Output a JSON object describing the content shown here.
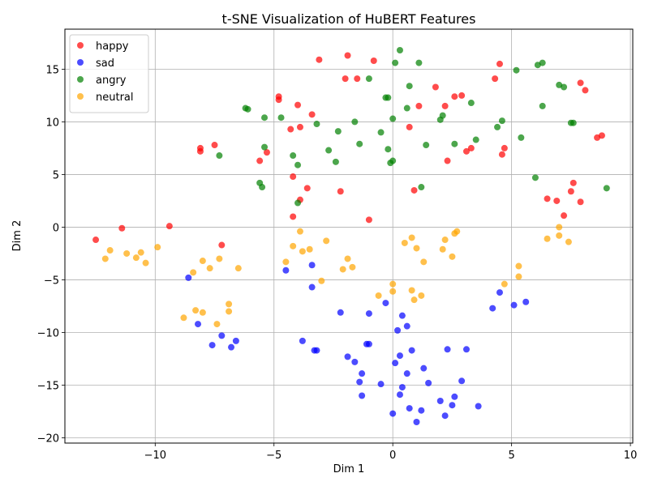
{
  "chart_data": {
    "type": "scatter",
    "title": "t-SNE Visualization of HuBERT Features",
    "xlabel": "Dim 1",
    "ylabel": "Dim 2",
    "xlim": [
      -13.8,
      10.1
    ],
    "ylim": [
      -20.5,
      18.8
    ],
    "xticks": [
      -10,
      -5,
      0,
      5,
      10
    ],
    "yticks": [
      -20,
      -15,
      -10,
      -5,
      0,
      5,
      10,
      15
    ],
    "xtick_labels": [
      "−10",
      "−5",
      "0",
      "5",
      "10"
    ],
    "ytick_labels": [
      "−20",
      "−15",
      "−10",
      "−5",
      "0",
      "5",
      "10",
      "15"
    ],
    "grid": true,
    "legend_position": "top-left",
    "series": [
      {
        "name": "happy",
        "color": "#ff0000",
        "points": [
          [
            -12.5,
            -1.2
          ],
          [
            -11.4,
            -0.1
          ],
          [
            -9.4,
            0.1
          ],
          [
            -7.2,
            -1.7
          ],
          [
            -8.1,
            7.2
          ],
          [
            -8.1,
            7.5
          ],
          [
            -7.5,
            7.8
          ],
          [
            -5.6,
            6.3
          ],
          [
            -5.3,
            7.1
          ],
          [
            -4.8,
            12.4
          ],
          [
            -4.8,
            12.1
          ],
          [
            -4.3,
            9.3
          ],
          [
            -4.2,
            4.8
          ],
          [
            -4.2,
            1.0
          ],
          [
            -4.0,
            11.6
          ],
          [
            -3.9,
            9.5
          ],
          [
            -3.9,
            2.6
          ],
          [
            -3.6,
            3.7
          ],
          [
            -3.4,
            10.7
          ],
          [
            -3.1,
            15.9
          ],
          [
            -2.2,
            3.4
          ],
          [
            -2.0,
            14.1
          ],
          [
            -1.9,
            16.3
          ],
          [
            -1.5,
            14.1
          ],
          [
            -1.0,
            0.7
          ],
          [
            -0.8,
            15.8
          ],
          [
            0.7,
            9.5
          ],
          [
            0.9,
            3.5
          ],
          [
            1.1,
            11.5
          ],
          [
            1.8,
            13.3
          ],
          [
            2.2,
            11.5
          ],
          [
            2.3,
            6.3
          ],
          [
            2.6,
            12.4
          ],
          [
            2.9,
            12.5
          ],
          [
            3.1,
            7.2
          ],
          [
            3.3,
            7.5
          ],
          [
            4.3,
            14.1
          ],
          [
            4.5,
            15.5
          ],
          [
            4.6,
            6.9
          ],
          [
            4.7,
            7.5
          ],
          [
            6.5,
            2.7
          ],
          [
            6.9,
            2.5
          ],
          [
            7.2,
            1.1
          ],
          [
            7.5,
            3.4
          ],
          [
            7.6,
            4.2
          ],
          [
            7.9,
            2.4
          ],
          [
            7.9,
            13.7
          ],
          [
            8.1,
            13.0
          ],
          [
            8.6,
            8.5
          ],
          [
            8.8,
            8.7
          ]
        ]
      },
      {
        "name": "sad",
        "color": "#0000ff",
        "points": [
          [
            -8.6,
            -4.8
          ],
          [
            -8.2,
            -9.2
          ],
          [
            -7.6,
            -11.2
          ],
          [
            -7.2,
            -10.3
          ],
          [
            -6.8,
            -11.4
          ],
          [
            -6.6,
            -10.8
          ],
          [
            -4.5,
            -4.1
          ],
          [
            -3.8,
            -10.8
          ],
          [
            -3.4,
            -3.6
          ],
          [
            -3.4,
            -5.7
          ],
          [
            -3.3,
            -11.7
          ],
          [
            -3.2,
            -11.7
          ],
          [
            -2.2,
            -8.1
          ],
          [
            -1.9,
            -12.3
          ],
          [
            -1.6,
            -12.8
          ],
          [
            -1.4,
            -14.7
          ],
          [
            -1.3,
            -16.0
          ],
          [
            -1.3,
            -13.9
          ],
          [
            -1.1,
            -11.1
          ],
          [
            -1.0,
            -11.1
          ],
          [
            -1.0,
            -8.2
          ],
          [
            -0.5,
            -14.9
          ],
          [
            -0.3,
            -7.2
          ],
          [
            0.0,
            -17.7
          ],
          [
            0.1,
            -12.9
          ],
          [
            0.2,
            -9.8
          ],
          [
            0.3,
            -12.2
          ],
          [
            0.4,
            -15.2
          ],
          [
            0.4,
            -8.4
          ],
          [
            0.6,
            -13.9
          ],
          [
            0.6,
            -9.4
          ],
          [
            0.7,
            -17.2
          ],
          [
            0.8,
            -11.7
          ],
          [
            1.0,
            -18.5
          ],
          [
            1.2,
            -17.4
          ],
          [
            1.3,
            -13.4
          ],
          [
            1.5,
            -14.8
          ],
          [
            2.0,
            -16.5
          ],
          [
            2.2,
            -17.9
          ],
          [
            2.3,
            -11.6
          ],
          [
            2.5,
            -16.9
          ],
          [
            2.6,
            -16.1
          ],
          [
            2.9,
            -14.6
          ],
          [
            3.1,
            -11.6
          ],
          [
            3.6,
            -17.0
          ],
          [
            4.2,
            -7.7
          ],
          [
            4.5,
            -6.2
          ],
          [
            5.1,
            -7.4
          ],
          [
            5.6,
            -7.1
          ],
          [
            0.3,
            -15.9
          ]
        ]
      },
      {
        "name": "angry",
        "color": "#008000",
        "points": [
          [
            -7.3,
            6.8
          ],
          [
            -6.2,
            11.3
          ],
          [
            -6.1,
            11.2
          ],
          [
            -5.6,
            4.2
          ],
          [
            -5.5,
            3.8
          ],
          [
            -5.4,
            10.4
          ],
          [
            -5.4,
            7.6
          ],
          [
            -4.7,
            10.4
          ],
          [
            -4.2,
            6.8
          ],
          [
            -4.0,
            2.3
          ],
          [
            -4.0,
            5.9
          ],
          [
            -3.2,
            9.8
          ],
          [
            -2.7,
            7.3
          ],
          [
            -2.4,
            6.2
          ],
          [
            -2.3,
            9.1
          ],
          [
            -1.6,
            10.0
          ],
          [
            -1.4,
            7.9
          ],
          [
            -1.0,
            14.1
          ],
          [
            -0.5,
            9.0
          ],
          [
            -0.3,
            12.3
          ],
          [
            -0.2,
            12.3
          ],
          [
            -0.2,
            7.4
          ],
          [
            -0.1,
            6.1
          ],
          [
            0.0,
            6.3
          ],
          [
            0.0,
            10.3
          ],
          [
            0.1,
            15.6
          ],
          [
            0.3,
            16.8
          ],
          [
            0.6,
            11.3
          ],
          [
            0.7,
            13.4
          ],
          [
            1.1,
            15.6
          ],
          [
            1.2,
            3.8
          ],
          [
            1.4,
            7.8
          ],
          [
            2.0,
            10.2
          ],
          [
            2.1,
            10.6
          ],
          [
            2.6,
            7.9
          ],
          [
            3.3,
            11.8
          ],
          [
            3.5,
            8.3
          ],
          [
            4.4,
            9.5
          ],
          [
            4.6,
            10.1
          ],
          [
            5.2,
            14.9
          ],
          [
            5.4,
            8.5
          ],
          [
            6.0,
            4.7
          ],
          [
            6.1,
            15.4
          ],
          [
            6.3,
            15.6
          ],
          [
            6.3,
            11.5
          ],
          [
            7.0,
            13.5
          ],
          [
            7.2,
            13.3
          ],
          [
            7.5,
            9.9
          ],
          [
            7.6,
            9.9
          ],
          [
            9.0,
            3.7
          ]
        ]
      },
      {
        "name": "neutral",
        "color": "#ffa500",
        "points": [
          [
            -12.1,
            -3.0
          ],
          [
            -11.9,
            -2.2
          ],
          [
            -11.2,
            -2.5
          ],
          [
            -10.8,
            -2.9
          ],
          [
            -10.6,
            -2.4
          ],
          [
            -10.4,
            -3.4
          ],
          [
            -9.9,
            -1.9
          ],
          [
            -8.8,
            -8.6
          ],
          [
            -8.4,
            -4.3
          ],
          [
            -8.3,
            -7.9
          ],
          [
            -8.0,
            -3.2
          ],
          [
            -8.0,
            -8.1
          ],
          [
            -7.7,
            -3.9
          ],
          [
            -7.4,
            -9.2
          ],
          [
            -7.3,
            -3.0
          ],
          [
            -6.9,
            -7.3
          ],
          [
            -6.9,
            -8.0
          ],
          [
            -6.5,
            -3.9
          ],
          [
            -4.5,
            -3.3
          ],
          [
            -4.2,
            -1.8
          ],
          [
            -3.9,
            -0.4
          ],
          [
            -3.8,
            -2.3
          ],
          [
            -3.5,
            -2.1
          ],
          [
            -3.0,
            -5.1
          ],
          [
            -2.8,
            -1.3
          ],
          [
            -2.1,
            -4.0
          ],
          [
            -1.9,
            -3.0
          ],
          [
            -1.7,
            -3.8
          ],
          [
            -0.6,
            -6.5
          ],
          [
            0.0,
            -6.1
          ],
          [
            0.0,
            -5.4
          ],
          [
            0.5,
            -1.5
          ],
          [
            0.8,
            -6.0
          ],
          [
            0.8,
            -1.0
          ],
          [
            0.9,
            -6.9
          ],
          [
            1.0,
            -2.0
          ],
          [
            1.2,
            -6.5
          ],
          [
            1.3,
            -3.3
          ],
          [
            2.1,
            -2.1
          ],
          [
            2.2,
            -1.2
          ],
          [
            2.5,
            -2.8
          ],
          [
            2.6,
            -0.6
          ],
          [
            2.7,
            -0.4
          ],
          [
            4.7,
            -5.4
          ],
          [
            5.3,
            -3.7
          ],
          [
            5.3,
            -4.7
          ],
          [
            6.5,
            -1.1
          ],
          [
            7.0,
            -0.8
          ],
          [
            7.0,
            0.0
          ],
          [
            7.4,
            -1.4
          ]
        ]
      }
    ]
  }
}
